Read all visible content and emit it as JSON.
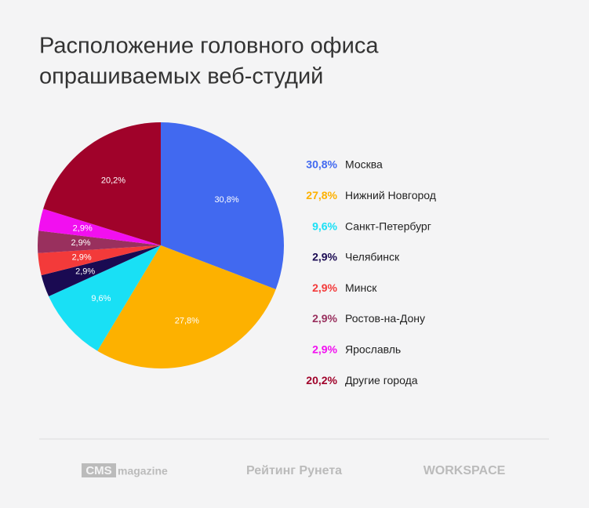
{
  "chart_data": {
    "type": "pie",
    "title": [
      "Расположение головного офиса",
      "опрашиваемых веб-студий"
    ],
    "categories": [
      "Москва",
      "Нижний Новгород",
      "Санкт-Петербург",
      "Челябинск",
      "Минск",
      "Ростов-на-Дону",
      "Ярославль",
      "Другие города"
    ],
    "values": [
      30.8,
      27.8,
      9.6,
      2.9,
      2.9,
      2.9,
      2.9,
      20.2
    ],
    "value_labels": [
      "30,8%",
      "27,8%",
      "9,6%",
      "2,9%",
      "2,9%",
      "2,9%",
      "2,9%",
      "20,2%"
    ],
    "colors": [
      "#4169f0",
      "#fdb100",
      "#19e0f5",
      "#1a0a52",
      "#f33a3a",
      "#99305e",
      "#f20ff0",
      "#a0022a"
    ],
    "legend": "right"
  },
  "footer": [
    "CMS",
    "magazine",
    "Рейтинг Рунета",
    "WORKSPACE"
  ]
}
